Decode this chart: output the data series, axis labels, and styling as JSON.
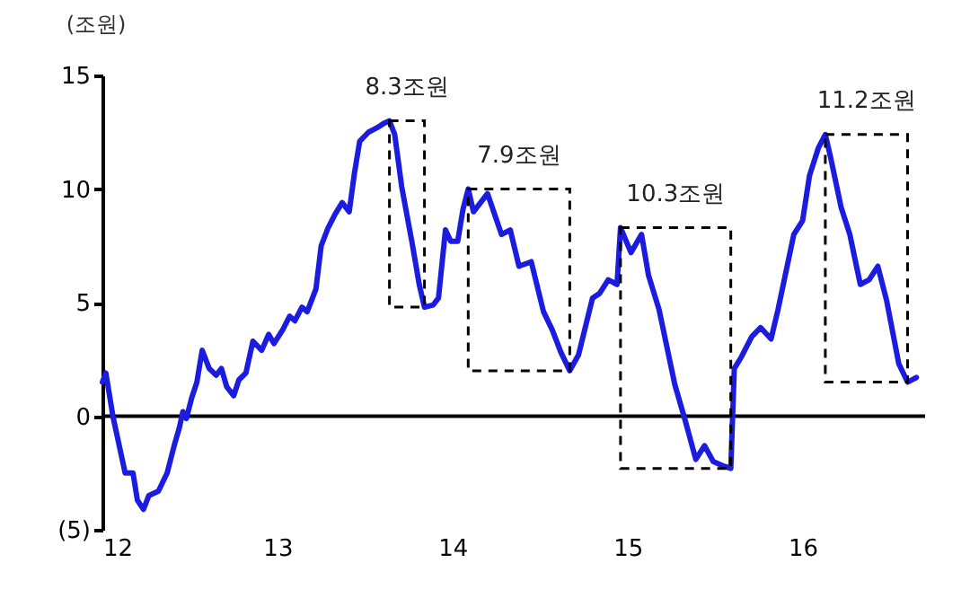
{
  "chart_data": {
    "type": "line",
    "ylabel": "(조원)",
    "x": [
      12.0,
      12.02,
      12.06,
      12.13,
      12.175,
      12.2,
      12.235,
      12.265,
      12.32,
      12.37,
      12.41,
      12.44,
      12.46,
      12.48,
      12.51,
      12.54,
      12.57,
      12.61,
      12.65,
      12.68,
      12.71,
      12.75,
      12.78,
      12.82,
      12.86,
      12.91,
      12.95,
      12.98,
      13.03,
      13.07,
      13.1,
      13.14,
      13.17,
      13.22,
      13.25,
      13.29,
      13.33,
      13.37,
      13.41,
      13.44,
      13.47,
      13.52,
      13.57,
      13.61,
      13.64,
      13.67,
      13.71,
      13.77,
      13.81,
      13.84,
      13.89,
      13.92,
      13.96,
      13.99,
      14.03,
      14.06,
      14.09,
      14.12,
      14.2,
      14.28,
      14.33,
      14.38,
      14.45,
      14.52,
      14.57,
      14.62,
      14.67,
      14.72,
      14.8,
      14.84,
      14.89,
      14.94,
      14.96,
      15.02,
      15.08,
      15.12,
      15.18,
      15.27,
      15.33,
      15.39,
      15.44,
      15.49,
      15.55,
      15.59,
      15.61,
      15.65,
      15.71,
      15.76,
      15.82,
      15.86,
      15.95,
      16.0,
      16.04,
      16.09,
      16.13,
      16.16,
      16.22,
      16.27,
      16.33,
      16.38,
      16.43,
      16.48,
      16.55,
      16.6,
      16.65
    ],
    "series": [
      {
        "color": "#1c1ce0",
        "values": [
          1.5,
          1.9,
          0,
          -2.5,
          -2.5,
          -3.7,
          -4.1,
          -3.5,
          -3.3,
          -2.5,
          -1.3,
          -0.5,
          0.2,
          -0.1,
          0.8,
          1.5,
          2.9,
          2.1,
          1.8,
          2.1,
          1.3,
          0.9,
          1.6,
          1.9,
          3.3,
          2.9,
          3.6,
          3.2,
          3.8,
          4.4,
          4.2,
          4.8,
          4.6,
          5.6,
          7.5,
          8.3,
          8.9,
          9.4,
          9.0,
          10.7,
          12.1,
          12.5,
          12.7,
          12.9,
          13.0,
          12.4,
          10.1,
          7.6,
          5.8,
          4.8,
          4.9,
          5.2,
          8.2,
          7.7,
          7.7,
          9.1,
          10.0,
          9.0,
          9.8,
          8.0,
          8.2,
          6.6,
          6.8,
          4.6,
          3.8,
          2.8,
          2.0,
          2.7,
          5.2,
          5.4,
          6.0,
          5.8,
          8.3,
          7.2,
          8.0,
          6.2,
          4.7,
          1.4,
          -0.2,
          -1.9,
          -1.3,
          -2.0,
          -2.2,
          -2.3,
          2.1,
          2.6,
          3.5,
          3.9,
          3.4,
          4.7,
          8.0,
          8.6,
          10.6,
          11.8,
          12.4,
          11.4,
          9.2,
          8.0,
          5.8,
          6.0,
          6.6,
          5.1,
          2.3,
          1.5,
          1.7
        ]
      }
    ],
    "xlim": [
      12,
      16.7
    ],
    "xticks": [
      12,
      13,
      14,
      15,
      16
    ],
    "ylim": [
      -5,
      15
    ],
    "yticks": [
      {
        "value": -5,
        "label": "(5)"
      },
      0,
      5,
      10,
      15
    ],
    "ref_lines": [
      {
        "axis": "y",
        "value": 0,
        "color": "#000000"
      }
    ],
    "annotations": [
      {
        "text": "8.3조원",
        "x": 13.64,
        "y": 13.0
      },
      {
        "text": "7.9조원",
        "x": 14.09,
        "y": 10.0
      },
      {
        "text": "10.3조원",
        "x": 14.96,
        "y": 8.3
      },
      {
        "text": "11.2조원",
        "x": 16.13,
        "y": 12.4
      }
    ],
    "grid": false,
    "legend": false,
    "line_style": "solid",
    "marker": "none"
  }
}
